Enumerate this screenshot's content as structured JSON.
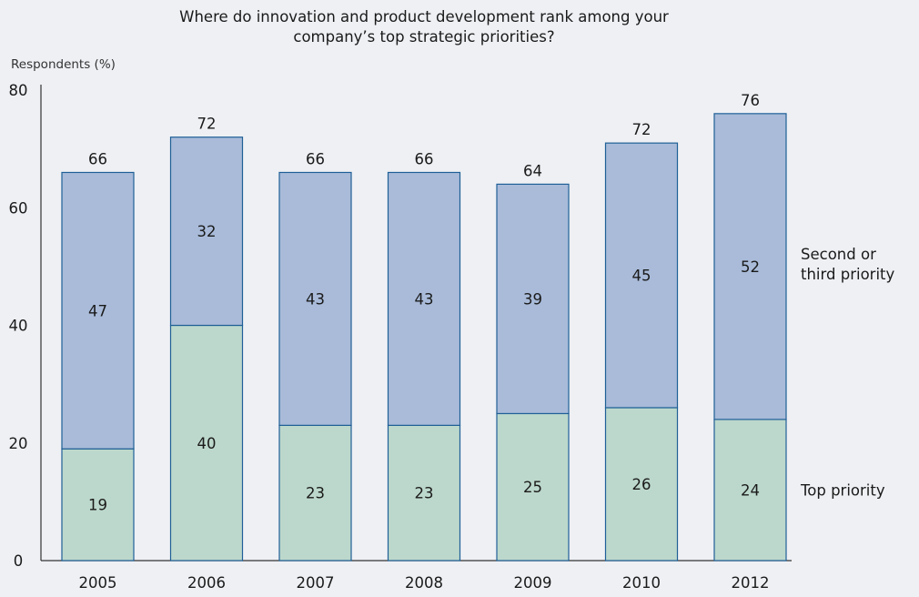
{
  "chart_data": {
    "type": "bar",
    "stacked": true,
    "title": "Where do innovation and product development rank among your\ncompany’s top strategic priorities?",
    "ylabel": "Respondents (%)",
    "xlabel": "",
    "ylim": [
      0,
      80
    ],
    "yticks": [
      0,
      20,
      40,
      60,
      80
    ],
    "categories": [
      "2005",
      "2006",
      "2007",
      "2008",
      "2009",
      "2010",
      "2012"
    ],
    "series": [
      {
        "name": "Top priority",
        "values": [
          19,
          40,
          23,
          23,
          25,
          26,
          24
        ],
        "color": "#bcd8cc"
      },
      {
        "name": "Second or third priority",
        "values": [
          47,
          32,
          43,
          43,
          39,
          45,
          52
        ],
        "color": "#a9bbd9"
      }
    ],
    "totals": [
      66,
      72,
      66,
      66,
      64,
      72,
      76
    ],
    "bar_border_color": "#1f5f96",
    "axis_color": "#333333",
    "legend": "right, inline labels beside last bar",
    "grid": false
  }
}
